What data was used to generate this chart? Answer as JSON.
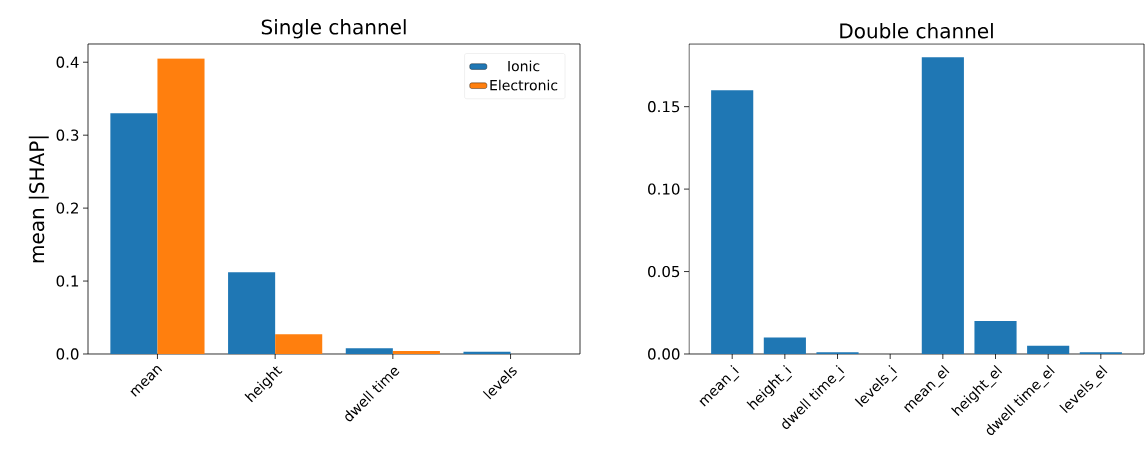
{
  "chart_data": [
    {
      "type": "bar",
      "title": "Single channel",
      "ylabel": "mean |SHAP|",
      "categories": [
        "mean",
        "height",
        "dwell time",
        "levels"
      ],
      "series": [
        {
          "name": "Ionic",
          "color": "#1f77b4",
          "values": [
            0.33,
            0.112,
            0.008,
            0.003
          ]
        },
        {
          "name": "Electronic",
          "color": "#ff7f0e",
          "values": [
            0.405,
            0.027,
            0.004,
            null
          ]
        }
      ],
      "ylim": [
        0,
        0.425
      ],
      "yticks": [
        {
          "value": 0,
          "label": "0.0"
        },
        0.1,
        0.2,
        0.3,
        0.4
      ],
      "legend": "top right"
    },
    {
      "type": "bar",
      "title": "Double channel",
      "categories": [
        "mean_i",
        "height_i",
        "dwell time_i",
        "levels_i",
        "mean_el",
        "height_el",
        "dwell time_el",
        "levels_el"
      ],
      "series": [
        {
          "color": "#1f77b4",
          "values": [
            0.16,
            0.01,
            0.001,
            null,
            0.18,
            0.02,
            0.005,
            0.001
          ]
        }
      ],
      "ylim": [
        0,
        0.188
      ],
      "yticks": [
        {
          "value": 0,
          "label": "0.00"
        },
        {
          "value": 0.05,
          "label": "0.05"
        },
        {
          "value": 0.1,
          "label": "0.10"
        },
        {
          "value": 0.15,
          "label": "0.15"
        }
      ]
    }
  ]
}
